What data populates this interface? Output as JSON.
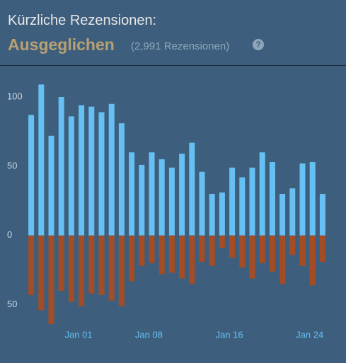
{
  "header": {
    "title": "Kürzliche Rezensionen:",
    "rating": "Ausgeglichen",
    "count": "(2,991 Rezensionen)",
    "help": "?"
  },
  "chart_data": {
    "type": "bar",
    "categories": [
      null,
      null,
      null,
      null,
      null,
      "Jan 01",
      null,
      null,
      null,
      null,
      null,
      null,
      "Jan 08",
      null,
      null,
      null,
      null,
      null,
      null,
      null,
      "Jan 16",
      null,
      null,
      null,
      null,
      null,
      null,
      null,
      "Jan 24",
      null
    ],
    "series": [
      {
        "color": "#66c0f4",
        "values": [
          87,
          109,
          72,
          100,
          86,
          94,
          93,
          89,
          95,
          81,
          60,
          51,
          60,
          55,
          49,
          59,
          67,
          46,
          30,
          31,
          49,
          42,
          49,
          60,
          53,
          30,
          34,
          52,
          53,
          30
        ]
      },
      {
        "color": "#a34c25",
        "values": [
          -43,
          -54,
          -64,
          -40,
          -48,
          -51,
          -42,
          -43,
          -47,
          -51,
          -33,
          -22,
          -20,
          -28,
          -27,
          -31,
          -35,
          -19,
          -22,
          -9,
          -16,
          -23,
          -31,
          -20,
          -26,
          -35,
          -14,
          -22,
          -36,
          -19
        ]
      }
    ],
    "ylim": [
      -66,
      112
    ],
    "yticks": [
      {
        "value": -50,
        "label": "50"
      },
      0,
      50,
      100
    ],
    "grid": false
  }
}
